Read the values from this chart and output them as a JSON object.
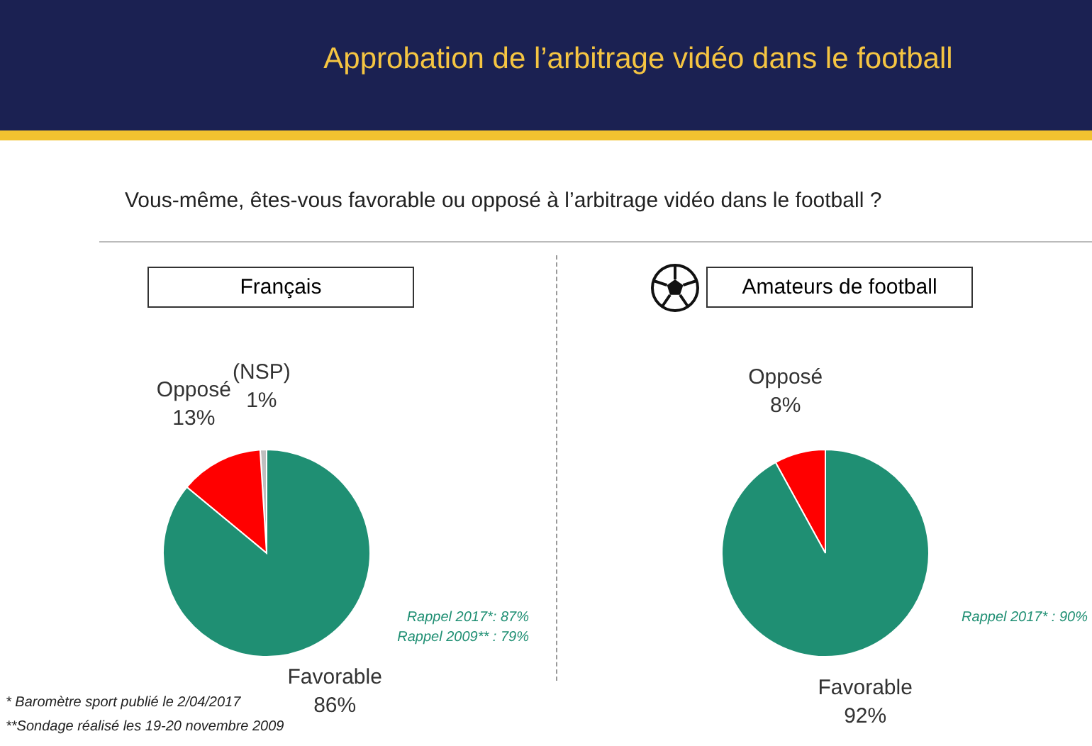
{
  "chart_data": [
    {
      "type": "other",
      "title": "Approbation de l’arbitrage vidéo dans le football",
      "subtitle": "Vous-même, êtes-vous favorable ou opposé à l’arbitrage vidéo dans le football ?",
      "annotations": [
        "* Baromètre sport publié le 2/04/2017",
        "**Sondage réalisé les 19-20 novembre 2009"
      ]
    },
    {
      "type": "pie",
      "title": "Français",
      "categories": [
        "(NSP)",
        "Opposé",
        "Favorable"
      ],
      "values": [
        1,
        13,
        86
      ],
      "colors": [
        "#bfbfbf",
        "#ff0000",
        "#1f8f73"
      ],
      "value_labels": [
        "1%",
        "13%",
        "86%"
      ],
      "annotations": [
        "Rappel 2017*: 87%",
        "Rappel 2009** : 79%"
      ]
    },
    {
      "type": "pie",
      "title": "Amateurs de football",
      "categories": [
        "Opposé",
        "Favorable"
      ],
      "values": [
        8,
        92
      ],
      "colors": [
        "#ff0000",
        "#1f8f73"
      ],
      "value_labels": [
        "8%",
        "92%"
      ],
      "annotations": [
        "Rappel 2017* : 90%"
      ]
    }
  ]
}
